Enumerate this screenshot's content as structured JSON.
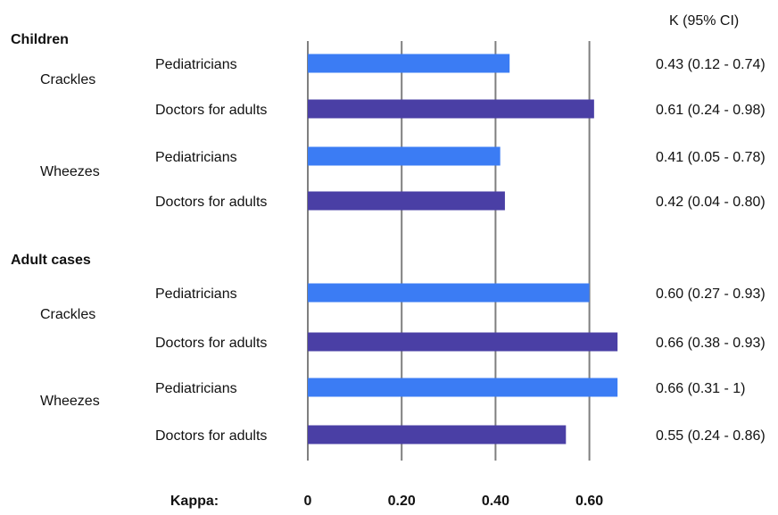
{
  "chart_data": {
    "type": "bar",
    "orientation": "horizontal",
    "ci_header": "K  (95% CI)",
    "xlabel": "Kappa:",
    "xlim": [
      0,
      0.8
    ],
    "x_ticks": [
      {
        "value": 0,
        "label": "0"
      },
      {
        "value": 0.2,
        "label": "0.20"
      },
      {
        "value": 0.4,
        "label": "0.40"
      },
      {
        "value": 0.6,
        "label": "0.60"
      }
    ],
    "grid": true,
    "colors": {
      "Pediatricians": "#3b7cf4",
      "Doctors for adults": "#4a3fa5",
      "gridline": "#7f7f7f"
    },
    "groups": [
      {
        "name": "Children",
        "subgroups": [
          {
            "name": "Crackles",
            "bars": [
              {
                "label": "Pediatricians",
                "value": 0.43,
                "ci_text": "0.43  (0.12 - 0.74)"
              },
              {
                "label": "Doctors for adults",
                "value": 0.61,
                "ci_text": "0.61  (0.24 - 0.98)"
              }
            ]
          },
          {
            "name": "Wheezes",
            "bars": [
              {
                "label": "Pediatricians",
                "value": 0.41,
                "ci_text": "0.41  (0.05 - 0.78)"
              },
              {
                "label": "Doctors for adults",
                "value": 0.42,
                "ci_text": "0.42  (0.04 - 0.80)"
              }
            ]
          }
        ]
      },
      {
        "name": "Adult cases",
        "subgroups": [
          {
            "name": "Crackles",
            "bars": [
              {
                "label": "Pediatricians",
                "value": 0.6,
                "ci_text": "0.60  (0.27 - 0.93)"
              },
              {
                "label": "Doctors for adults",
                "value": 0.66,
                "ci_text": "0.66  (0.38 - 0.93)"
              }
            ]
          },
          {
            "name": "Wheezes",
            "bars": [
              {
                "label": "Pediatricians",
                "value": 0.66,
                "ci_text": "0.66  (0.31 - 1)"
              },
              {
                "label": "Doctors for adults",
                "value": 0.55,
                "ci_text": "0.55  (0.24 - 0.86)"
              }
            ]
          }
        ]
      }
    ]
  }
}
